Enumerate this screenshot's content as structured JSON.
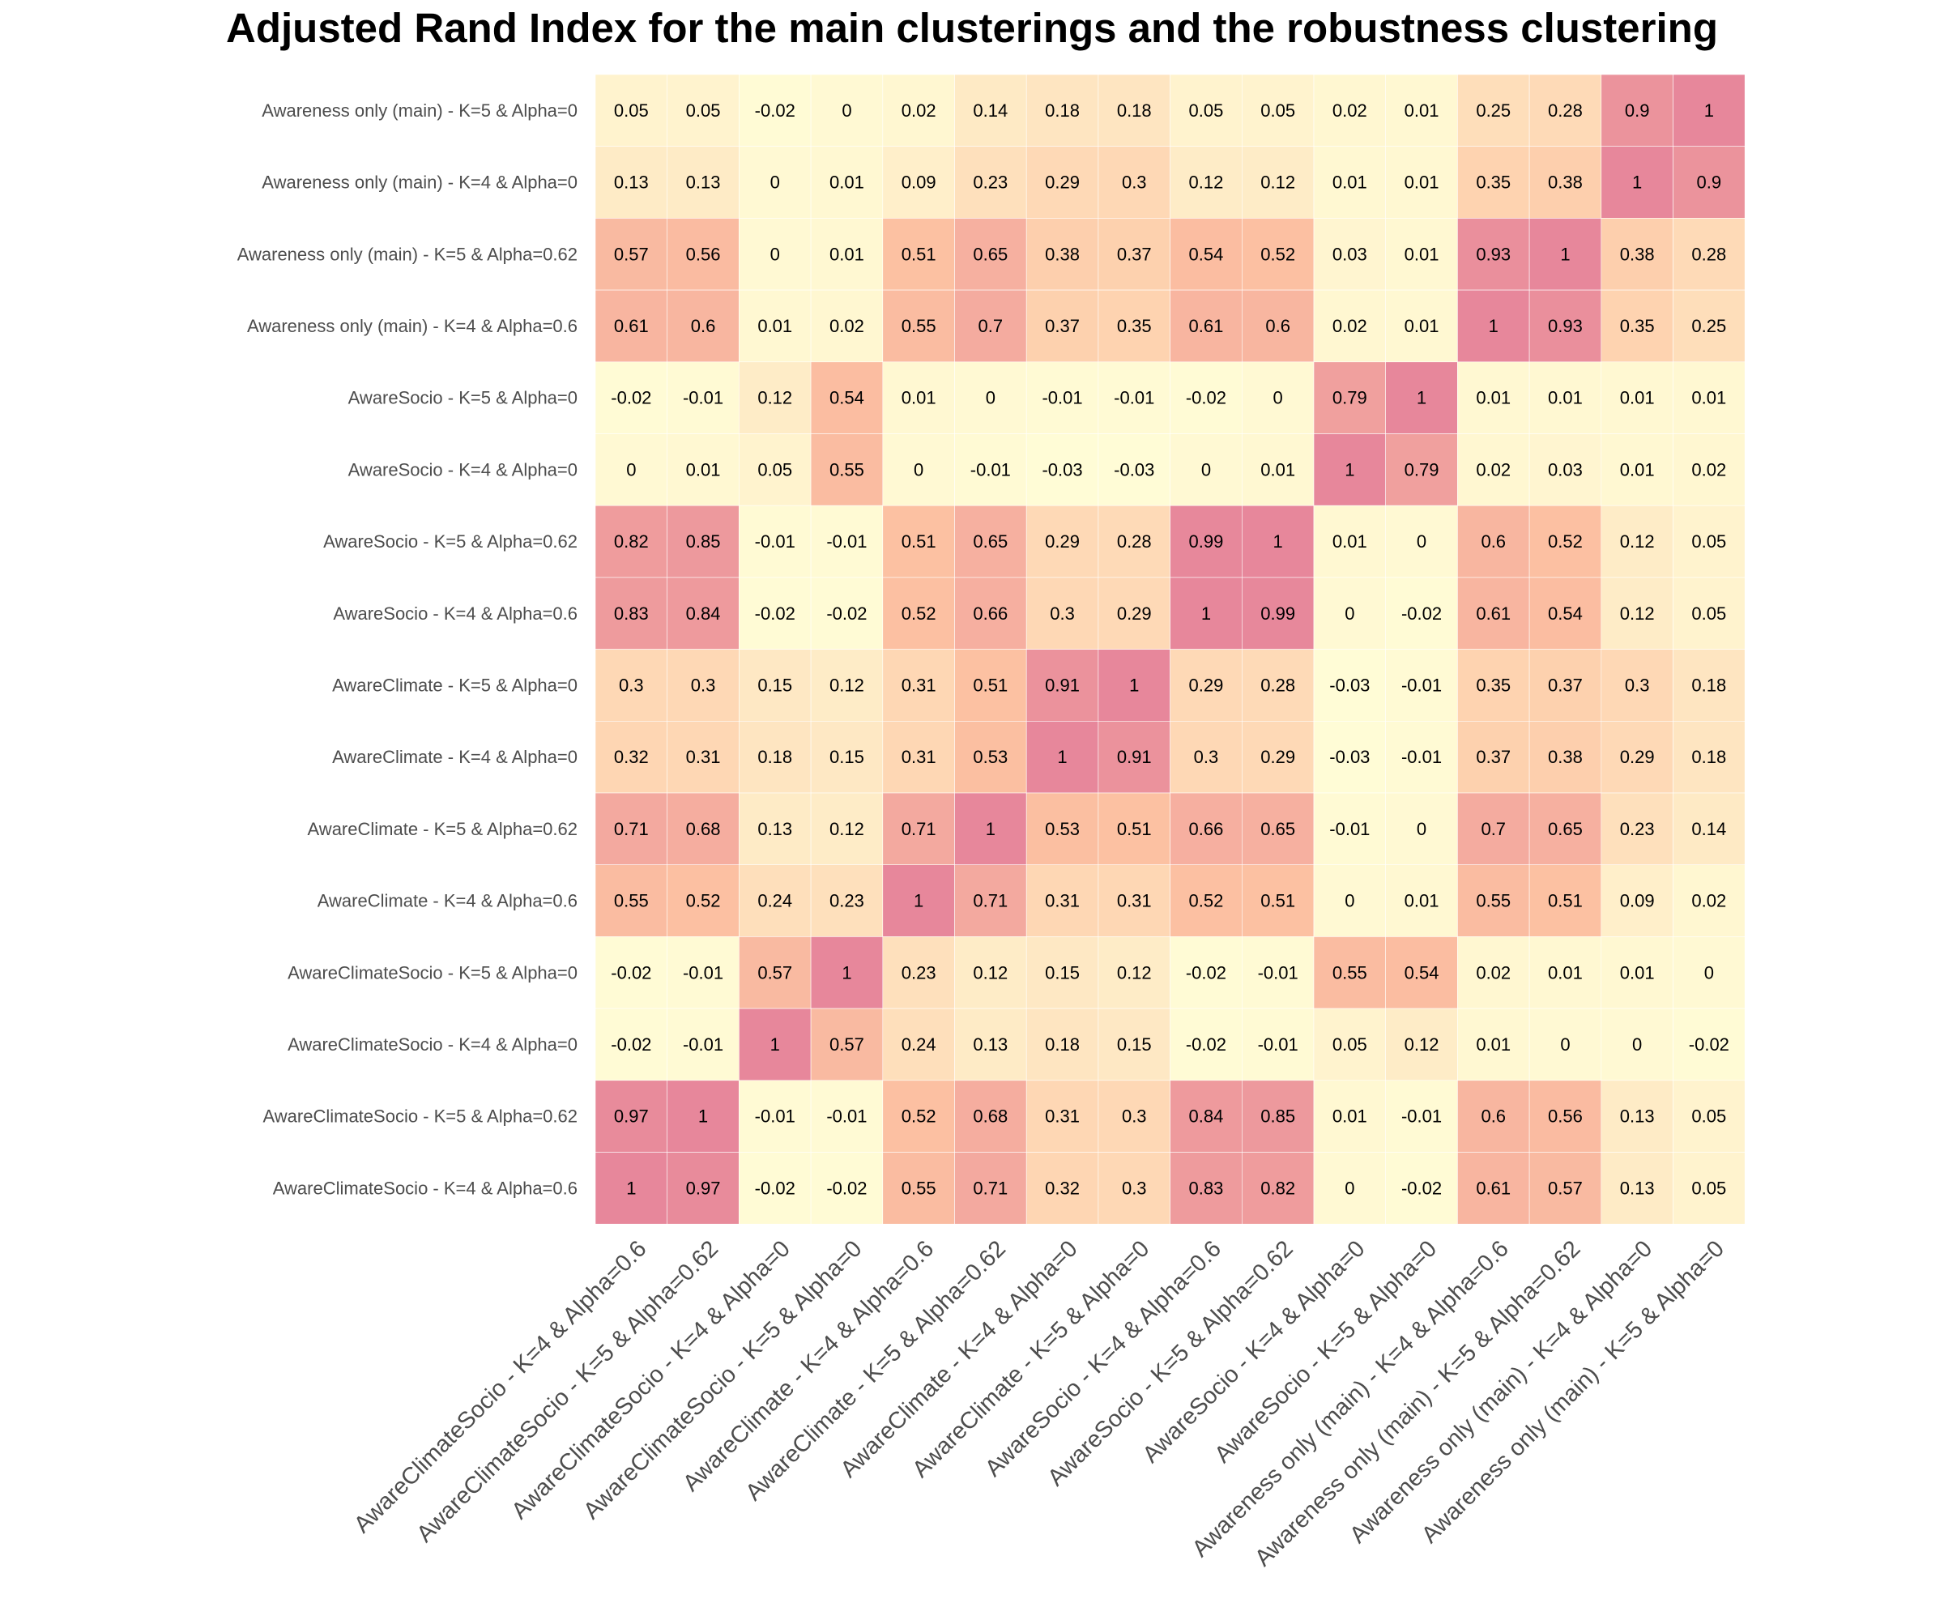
{
  "chart_data": {
    "type": "heatmap",
    "title": "Adjusted Rand Index for the main clusterings and the robustness clustering",
    "xlabel": "",
    "ylabel": "",
    "legend": "none",
    "grid": false,
    "color_scale": {
      "low": "#fffcd6",
      "mid": "#fdc4a2",
      "high": "#e7879b",
      "domain": [
        -0.03,
        1
      ]
    },
    "rows": [
      "Awareness only (main) - K=5 & Alpha=0",
      "Awareness only (main) - K=4 & Alpha=0",
      "Awareness only (main) - K=5 & Alpha=0.62",
      "Awareness only (main) - K=4 & Alpha=0.6",
      "AwareSocio - K=5 & Alpha=0",
      "AwareSocio - K=4 & Alpha=0",
      "AwareSocio - K=5 & Alpha=0.62",
      "AwareSocio - K=4 & Alpha=0.6",
      "AwareClimate - K=5 & Alpha=0",
      "AwareClimate - K=4 & Alpha=0",
      "AwareClimate - K=5 & Alpha=0.62",
      "AwareClimate - K=4 & Alpha=0.6",
      "AwareClimateSocio - K=5 & Alpha=0",
      "AwareClimateSocio - K=4 & Alpha=0",
      "AwareClimateSocio - K=5 & Alpha=0.62",
      "AwareClimateSocio - K=4 & Alpha=0.6"
    ],
    "columns": [
      "AwareClimateSocio - K=4 & Alpha=0.6",
      "AwareClimateSocio - K=5 & Alpha=0.62",
      "AwareClimateSocio - K=4 & Alpha=0",
      "AwareClimateSocio - K=5 & Alpha=0",
      "AwareClimate - K=4 & Alpha=0.6",
      "AwareClimate - K=5 & Alpha=0.62",
      "AwareClimate - K=4 & Alpha=0",
      "AwareClimate - K=5 & Alpha=0",
      "AwareSocio - K=4 & Alpha=0.6",
      "AwareSocio - K=5 & Alpha=0.62",
      "AwareSocio - K=4 & Alpha=0",
      "AwareSocio - K=5 & Alpha=0",
      "Awareness only (main) - K=4 & Alpha=0.6",
      "Awareness only (main) - K=5 & Alpha=0.62",
      "Awareness only (main) - K=4 & Alpha=0",
      "Awareness only (main) - K=5 & Alpha=0"
    ],
    "values": [
      [
        0.05,
        0.05,
        -0.02,
        0,
        0.02,
        0.14,
        0.18,
        0.18,
        0.05,
        0.05,
        0.02,
        0.01,
        0.25,
        0.28,
        0.9,
        1
      ],
      [
        0.13,
        0.13,
        0,
        0.01,
        0.09,
        0.23,
        0.29,
        0.3,
        0.12,
        0.12,
        0.01,
        0.01,
        0.35,
        0.38,
        1,
        0.9
      ],
      [
        0.57,
        0.56,
        0,
        0.01,
        0.51,
        0.65,
        0.38,
        0.37,
        0.54,
        0.52,
        0.03,
        0.01,
        0.93,
        1,
        0.38,
        0.28
      ],
      [
        0.61,
        0.6,
        0.01,
        0.02,
        0.55,
        0.7,
        0.37,
        0.35,
        0.61,
        0.6,
        0.02,
        0.01,
        1,
        0.93,
        0.35,
        0.25
      ],
      [
        -0.02,
        -0.01,
        0.12,
        0.54,
        0.01,
        0,
        -0.01,
        -0.01,
        -0.02,
        0,
        0.79,
        1,
        0.01,
        0.01,
        0.01,
        0.01
      ],
      [
        0,
        0.01,
        0.05,
        0.55,
        0,
        -0.01,
        -0.03,
        -0.03,
        0,
        0.01,
        1,
        0.79,
        0.02,
        0.03,
        0.01,
        0.02
      ],
      [
        0.82,
        0.85,
        -0.01,
        -0.01,
        0.51,
        0.65,
        0.29,
        0.28,
        0.99,
        1,
        0.01,
        0,
        0.6,
        0.52,
        0.12,
        0.05
      ],
      [
        0.83,
        0.84,
        -0.02,
        -0.02,
        0.52,
        0.66,
        0.3,
        0.29,
        1,
        0.99,
        0,
        -0.02,
        0.61,
        0.54,
        0.12,
        0.05
      ],
      [
        0.3,
        0.3,
        0.15,
        0.12,
        0.31,
        0.51,
        0.91,
        1,
        0.29,
        0.28,
        -0.03,
        -0.01,
        0.35,
        0.37,
        0.3,
        0.18
      ],
      [
        0.32,
        0.31,
        0.18,
        0.15,
        0.31,
        0.53,
        1,
        0.91,
        0.3,
        0.29,
        -0.03,
        -0.01,
        0.37,
        0.38,
        0.29,
        0.18
      ],
      [
        0.71,
        0.68,
        0.13,
        0.12,
        0.71,
        1,
        0.53,
        0.51,
        0.66,
        0.65,
        -0.01,
        0,
        0.7,
        0.65,
        0.23,
        0.14
      ],
      [
        0.55,
        0.52,
        0.24,
        0.23,
        1,
        0.71,
        0.31,
        0.31,
        0.52,
        0.51,
        0,
        0.01,
        0.55,
        0.51,
        0.09,
        0.02
      ],
      [
        -0.02,
        -0.01,
        0.57,
        1,
        0.23,
        0.12,
        0.15,
        0.12,
        -0.02,
        -0.01,
        0.55,
        0.54,
        0.02,
        0.01,
        0.01,
        0
      ],
      [
        -0.02,
        -0.01,
        1,
        0.57,
        0.24,
        0.13,
        0.18,
        0.15,
        -0.02,
        -0.01,
        0.05,
        0.12,
        0.01,
        0,
        0,
        -0.02
      ],
      [
        0.97,
        1,
        -0.01,
        -0.01,
        0.52,
        0.68,
        0.31,
        0.3,
        0.84,
        0.85,
        0.01,
        -0.01,
        0.6,
        0.56,
        0.13,
        0.05
      ],
      [
        1,
        0.97,
        -0.02,
        -0.02,
        0.55,
        0.71,
        0.32,
        0.3,
        0.83,
        0.82,
        0,
        -0.02,
        0.61,
        0.57,
        0.13,
        0.05
      ]
    ]
  }
}
